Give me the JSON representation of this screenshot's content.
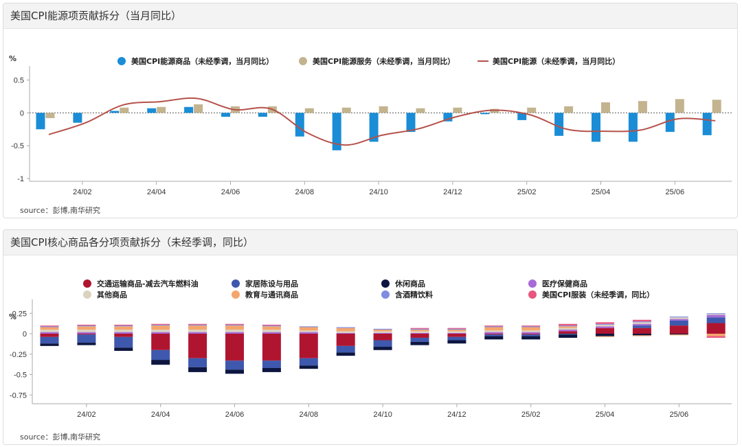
{
  "charts": [
    {
      "title": "美国CPI能源项贡献拆分（当月同比）",
      "source": "source：彭博,南华研究",
      "chart_data": {
        "type": "bar",
        "unit": "%",
        "ylim": [
          -1,
          0.6
        ],
        "yticks": [
          {
            "value": 0.5,
            "label": "0.5"
          },
          {
            "value": 0,
            "label": "0"
          },
          {
            "value": -0.5,
            "label": "-0.5"
          },
          {
            "value": -1,
            "label": "-1"
          }
        ],
        "categories": [
          "24/01",
          "24/02",
          "24/03",
          "24/04",
          "24/05",
          "24/06",
          "24/07",
          "24/08",
          "24/09",
          "24/10",
          "24/11",
          "24/12",
          "25/01",
          "25/02",
          "25/03",
          "25/04",
          "25/05",
          "25/06",
          "25/07"
        ],
        "x_tick_labels": [
          "24/02",
          "24/04",
          "24/06",
          "24/08",
          "24/10",
          "24/12",
          "25/02",
          "25/04",
          "25/06"
        ],
        "grid": false,
        "legend_position": "top",
        "series": [
          {
            "name": "美国CPI能源商品（未经季调，当月同比）",
            "kind": "bar",
            "color": "#1a8dd6",
            "values": [
              -0.25,
              -0.15,
              0.03,
              0.07,
              0.09,
              -0.06,
              -0.06,
              -0.36,
              -0.57,
              -0.44,
              -0.29,
              -0.13,
              -0.02,
              -0.11,
              -0.35,
              -0.44,
              -0.44,
              -0.29,
              -0.34
            ]
          },
          {
            "name": "美国CPI能源服务（未经季调，当月同比）",
            "kind": "bar",
            "color": "#c3b48f",
            "values": [
              -0.08,
              0.0,
              0.08,
              0.09,
              0.13,
              0.1,
              0.1,
              0.07,
              0.08,
              0.1,
              0.07,
              0.08,
              0.06,
              0.08,
              0.1,
              0.16,
              0.18,
              0.21,
              0.2
            ]
          },
          {
            "name": "美国CPI能源（未经季调，当月同比）",
            "kind": "line",
            "color": "#b5514a",
            "values": [
              -0.33,
              -0.15,
              0.12,
              0.17,
              0.22,
              0.05,
              0.06,
              -0.31,
              -0.49,
              -0.34,
              -0.24,
              -0.06,
              0.04,
              -0.03,
              -0.25,
              -0.28,
              -0.26,
              -0.09,
              -0.12
            ]
          }
        ]
      }
    },
    {
      "title": "美国CPI核心商品各分项贡献拆分（未经季调，同比）",
      "source": "source：彭博,南华研究",
      "chart_data": {
        "type": "bar",
        "stacked": true,
        "unit": "%",
        "ylim": [
          -0.85,
          0.35
        ],
        "yticks": [
          {
            "value": 0.25,
            "label": "0.25"
          },
          {
            "value": 0,
            "label": "0"
          },
          {
            "value": -0.25,
            "label": "-0.25"
          },
          {
            "value": -0.5,
            "label": "-0.5"
          },
          {
            "value": -0.75,
            "label": "-0.75"
          }
        ],
        "categories": [
          "24/01",
          "24/02",
          "24/03",
          "24/04",
          "24/05",
          "24/06",
          "24/07",
          "24/08",
          "24/09",
          "24/10",
          "24/11",
          "24/12",
          "25/01",
          "25/02",
          "25/03",
          "25/04",
          "25/05",
          "25/06",
          "25/07"
        ],
        "x_tick_labels": [
          "24/02",
          "24/04",
          "24/06",
          "24/08",
          "24/10",
          "24/12",
          "25/02",
          "25/04",
          "25/06"
        ],
        "grid": false,
        "legend_position": "top",
        "series": [
          {
            "name": "交通运输商品-减去汽车燃料油",
            "color": "#b01530",
            "values": [
              -0.04,
              -0.01,
              -0.04,
              -0.2,
              -0.3,
              -0.33,
              -0.33,
              -0.3,
              -0.15,
              -0.08,
              -0.05,
              -0.04,
              -0.01,
              -0.01,
              0.03,
              0.07,
              0.07,
              0.1,
              0.13
            ]
          },
          {
            "name": "家居陈设与用品",
            "color": "#3e58ad",
            "values": [
              -0.08,
              -0.1,
              -0.13,
              -0.12,
              -0.11,
              -0.11,
              -0.09,
              -0.09,
              -0.08,
              -0.08,
              -0.05,
              -0.04,
              -0.02,
              -0.02,
              -0.01,
              0.0,
              0.03,
              0.06,
              0.07
            ]
          },
          {
            "name": "休闲商品",
            "color": "#0d1640",
            "values": [
              -0.03,
              -0.03,
              -0.04,
              -0.06,
              -0.06,
              -0.05,
              -0.05,
              -0.04,
              -0.04,
              -0.04,
              -0.04,
              -0.04,
              -0.04,
              -0.04,
              -0.04,
              -0.03,
              -0.02,
              -0.01,
              0.0
            ]
          },
          {
            "name": "医疗保健商品",
            "color": "#a86ad6",
            "values": [
              0.02,
              0.02,
              0.02,
              0.02,
              0.02,
              0.02,
              0.02,
              0.02,
              0.01,
              0.01,
              0.01,
              0.01,
              0.02,
              0.02,
              0.02,
              0.02,
              0.02,
              0.02,
              0.03
            ]
          },
          {
            "name": "其他商品",
            "color": "#d9d3bf",
            "values": [
              0.03,
              0.03,
              0.03,
              0.03,
              0.03,
              0.03,
              0.03,
              0.02,
              0.02,
              0.02,
              0.02,
              0.02,
              0.02,
              0.02,
              0.02,
              0.02,
              0.02,
              0.02,
              0.01
            ]
          },
          {
            "name": "教育与通讯商品",
            "color": "#f5a66d",
            "values": [
              0.03,
              0.04,
              0.04,
              0.05,
              0.05,
              0.05,
              0.04,
              0.04,
              0.04,
              0.02,
              0.02,
              0.02,
              0.04,
              0.04,
              0.02,
              -0.01,
              -0.01,
              -0.01,
              -0.03
            ]
          },
          {
            "name": "含酒精饮料",
            "color": "#7f8ce0",
            "values": [
              0.01,
              0.01,
              0.01,
              0.01,
              0.01,
              0.01,
              0.01,
              0.01,
              0.01,
              0.01,
              0.01,
              0.01,
              0.01,
              0.01,
              0.01,
              0.01,
              0.01,
              0.01,
              0.01
            ]
          },
          {
            "name": "美国CPI服装（未经季调，同比）",
            "color": "#e8567f",
            "values": [
              0.01,
              0.01,
              0.01,
              0.01,
              0.01,
              0.01,
              0.01,
              0.0,
              0.0,
              0.0,
              0.01,
              0.01,
              0.01,
              0.01,
              0.02,
              0.02,
              0.02,
              0.0,
              -0.02
            ]
          }
        ]
      }
    }
  ]
}
